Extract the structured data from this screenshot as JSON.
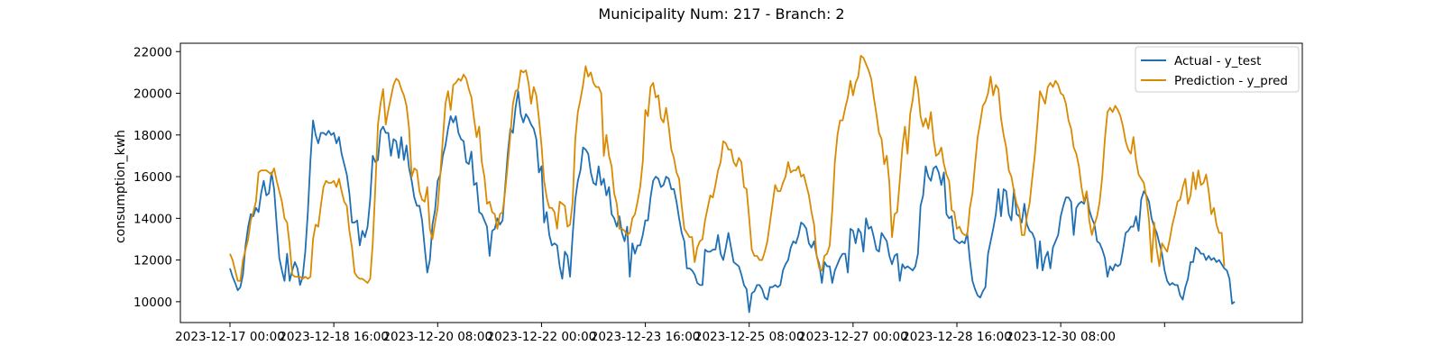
{
  "chart_data": {
    "type": "line",
    "title": "Municipality Num: 217 - Branch: 2",
    "xlabel": "",
    "ylabel": "consumption_kwh",
    "ylim": [
      9000,
      22400
    ],
    "x_start": "2023-12-17 00:00",
    "x_step_hours": 1,
    "x_tick_labels": [
      "2023-12-17 00:00",
      "2023-12-18 16:00",
      "2023-12-20 08:00",
      "2023-12-22 00:00",
      "2023-12-23 16:00",
      "2023-12-25 08:00",
      "2023-12-27 00:00",
      "2023-12-28 16:00",
      "2023-12-30 08:00",
      ""
    ],
    "y_ticks": [
      10000,
      12000,
      14000,
      16000,
      18000,
      20000,
      22000
    ],
    "y_tick_labels": [
      "10000",
      "12000",
      "14000",
      "16000",
      "18000",
      "20000",
      "22000"
    ],
    "grid": false,
    "legend_position": "top-right",
    "series": [
      {
        "name": "Actual - y_test",
        "color": "#1f6fb4",
        "values": [
          11600,
          11200,
          10900,
          10550,
          10700,
          11300,
          12700,
          13600,
          14200,
          14100,
          14500,
          14300,
          15200,
          15800,
          15100,
          15200,
          16200,
          15400,
          13700,
          12100,
          11500,
          11000,
          12300,
          11000,
          11500,
          11900,
          11600,
          10800,
          11200,
          12400,
          14300,
          16800,
          18700,
          18000,
          17600,
          18100,
          18100,
          18000,
          18200,
          18000,
          18100,
          17600,
          17900,
          17100,
          16600,
          16100,
          15200,
          13800,
          13800,
          13900,
          12700,
          13400,
          13100,
          13600,
          14900,
          17000,
          16700,
          16800,
          18200,
          18400,
          18100,
          18100,
          17000,
          17800,
          17700,
          16900,
          17900,
          16800,
          17500,
          16400,
          15800,
          15000,
          14600,
          14600,
          13900,
          12600,
          11400,
          12000,
          13700,
          14400,
          15800,
          16100,
          17000,
          17500,
          18300,
          18900,
          18600,
          18900,
          18100,
          17800,
          17700,
          16700,
          16600,
          17200,
          15600,
          15700,
          14300,
          14200,
          13900,
          13600,
          12200,
          13400,
          13500,
          14000,
          13700,
          13900,
          15500,
          17100,
          18300,
          18100,
          19300,
          20100,
          19000,
          18600,
          19000,
          18800,
          18500,
          18300,
          17800,
          16200,
          16500,
          13800,
          14300,
          13200,
          12700,
          12800,
          12700,
          11700,
          11100,
          12400,
          12200,
          11200,
          13200,
          14900,
          15800,
          16300,
          17400,
          17300,
          17100,
          16200,
          15700,
          15600,
          16500,
          15600,
          15900,
          15100,
          15500,
          14200,
          14000,
          13600,
          14100,
          13300,
          12900,
          13600,
          11200,
          12800,
          12300,
          12700,
          12700,
          13200,
          13900,
          13900,
          15000,
          15800,
          16000,
          15900,
          15500,
          15600,
          16000,
          15900,
          15400,
          15400,
          14800,
          14000,
          13300,
          12900,
          11600,
          11600,
          11500,
          11300,
          10900,
          10800,
          10800,
          12500,
          12400,
          12400,
          12500,
          12500,
          13200,
          12300,
          12000,
          12600,
          13300,
          12600,
          11900,
          11800,
          11700,
          11300,
          10800,
          10600,
          9500,
          10400,
          10500,
          10800,
          10800,
          10600,
          10200,
          10100,
          10700,
          10700,
          10800,
          10700,
          10800,
          11500,
          11800,
          12000,
          12600,
          12900,
          12800,
          13200,
          13800,
          13700,
          13500,
          12800,
          12600,
          12900,
          12200,
          11800,
          10900,
          11900,
          11700,
          11700,
          10900,
          11500,
          11800,
          12100,
          12300,
          12300,
          11400,
          13500,
          13400,
          12800,
          13500,
          13300,
          12400,
          14000,
          13500,
          13600,
          13100,
          12500,
          12400,
          13300,
          13100,
          12900,
          12200,
          11800,
          12200,
          12300,
          11000,
          11800,
          11600,
          11700,
          11600,
          11500,
          11700,
          12300,
          14600,
          15100,
          16500,
          16000,
          15800,
          16400,
          16500,
          16200,
          15600,
          16200,
          14200,
          14000,
          14100,
          13000,
          12900,
          12800,
          12900,
          12800,
          13300,
          12000,
          11000,
          10600,
          10300,
          10200,
          10500,
          10700,
          12300,
          12900,
          13500,
          14200,
          15400,
          14100,
          15400,
          15300,
          14200,
          13900,
          15400,
          14200,
          14100,
          13800,
          14700,
          13700,
          13400,
          13300,
          13000,
          11600,
          12900,
          11500,
          12100,
          12400,
          11600,
          12600,
          12900,
          13200,
          14100,
          14600,
          15000,
          15000,
          14800,
          13200,
          14500,
          14700,
          14800,
          14700,
          15200,
          14400,
          14000,
          13700,
          12900,
          12800,
          12500,
          12100,
          11200,
          11700,
          11500,
          11800,
          11700,
          11800,
          12500,
          13300,
          13400,
          13600,
          13600,
          14100,
          13400,
          14900,
          15300,
          15100,
          14800,
          14000,
          13600,
          13300,
          12800,
          12300,
          11500,
          11000,
          10800,
          10900,
          10800,
          10800,
          10300,
          10100,
          10700,
          11100,
          11900,
          11900,
          12600,
          12500,
          12300,
          12300,
          12000,
          12200,
          12000,
          12100,
          11900,
          12000,
          11800,
          11600,
          11500,
          11100,
          9900,
          10000
        ]
      },
      {
        "name": "Prediction - y_pred",
        "color": "#d98a00",
        "values": [
          12300,
          12000,
          11500,
          11000,
          11000,
          12000,
          12500,
          13000,
          13900,
          14300,
          14800,
          16200,
          16300,
          16300,
          16300,
          16200,
          16100,
          16400,
          15800,
          15300,
          14800,
          14000,
          13800,
          12700,
          11300,
          11200,
          11200,
          11200,
          11100,
          11200,
          11100,
          11200,
          13000,
          13700,
          13600,
          14600,
          15500,
          15800,
          15700,
          15700,
          15800,
          15500,
          15900,
          15300,
          14800,
          14600,
          13400,
          12600,
          11400,
          11200,
          11100,
          11100,
          11000,
          10900,
          11100,
          12800,
          15500,
          18500,
          19500,
          20200,
          18500,
          19200,
          19800,
          20400,
          20700,
          20600,
          20200,
          19900,
          19400,
          18300,
          16000,
          16400,
          16300,
          15300,
          14900,
          14800,
          15500,
          13500,
          13000,
          13800,
          14500,
          16100,
          17800,
          19500,
          20100,
          19200,
          20400,
          20500,
          20700,
          20600,
          20900,
          20700,
          20200,
          19800,
          18800,
          17900,
          18400,
          16700,
          16000,
          14700,
          14800,
          14300,
          14200,
          13500,
          14200,
          14300,
          15300,
          16600,
          18000,
          19500,
          20100,
          20200,
          21100,
          21000,
          21100,
          20500,
          19500,
          20300,
          19900,
          18800,
          17500,
          15800,
          15000,
          14500,
          14500,
          14300,
          13500,
          14800,
          14700,
          14600,
          13600,
          13700,
          14800,
          17800,
          19100,
          19700,
          20400,
          21300,
          20800,
          21000,
          20500,
          20300,
          20300,
          20000,
          17000,
          18000,
          17000,
          16500,
          15200,
          14700,
          13500,
          13500,
          13400,
          13200,
          13300,
          14000,
          14200,
          14800,
          15500,
          16700,
          19200,
          18900,
          20300,
          20500,
          19800,
          19900,
          18800,
          18600,
          19300,
          18400,
          17300,
          16900,
          16200,
          15900,
          14600,
          13500,
          13300,
          13100,
          13100,
          11900,
          12600,
          12900,
          13000,
          13900,
          14500,
          15100,
          15000,
          15600,
          16300,
          16700,
          17700,
          17600,
          17300,
          17300,
          16700,
          16500,
          16900,
          16700,
          15500,
          15400,
          14000,
          12500,
          12200,
          12200,
          12000,
          12000,
          12400,
          12900,
          13800,
          14700,
          15600,
          15300,
          15300,
          15700,
          16000,
          16700,
          16200,
          16300,
          16300,
          16500,
          16000,
          16100,
          15600,
          15100,
          14300,
          13700,
          12200,
          11600,
          11500,
          12200,
          12300,
          12700,
          14400,
          16700,
          18000,
          18700,
          18700,
          19300,
          19800,
          20600,
          19900,
          20500,
          20800,
          21800,
          21700,
          21400,
          21100,
          20700,
          19800,
          19000,
          18100,
          17800,
          16600,
          17000,
          15700,
          13100,
          14200,
          14300,
          15800,
          17400,
          18400,
          17100,
          19000,
          19700,
          20800,
          20200,
          18900,
          18400,
          18800,
          18300,
          19100,
          17800,
          17000,
          17100,
          17400,
          16600,
          16100,
          15800,
          14400,
          14300,
          13500,
          13600,
          13300,
          13200,
          13200,
          14500,
          15200,
          16600,
          17900,
          18600,
          19400,
          19600,
          20000,
          20800,
          19900,
          20400,
          20200,
          18800,
          18000,
          17400,
          16300,
          16000,
          15300,
          14700,
          14400,
          13200,
          13200,
          14100,
          14700,
          15900,
          17000,
          18500,
          20100,
          19800,
          19500,
          20300,
          20500,
          20300,
          20600,
          20400,
          20000,
          19900,
          19500,
          18700,
          18300,
          17400,
          17100,
          16500,
          15500,
          14800,
          15300,
          13900,
          13200,
          13700,
          14100,
          14800,
          16000,
          17800,
          19100,
          19300,
          19100,
          19400,
          19200,
          18900,
          18400,
          17700,
          17300,
          17100,
          17900,
          16800,
          16100,
          15900,
          15700,
          15000,
          13900,
          11900,
          13800,
          12500,
          11700,
          12800,
          12600,
          12400,
          13000,
          13700,
          14200,
          14800,
          14900,
          15500,
          15900,
          14700,
          15100,
          16200,
          15400,
          16300,
          15600,
          15700,
          16100,
          15300,
          14200,
          14500,
          13700,
          13300,
          13300,
          11700
        ]
      }
    ]
  }
}
